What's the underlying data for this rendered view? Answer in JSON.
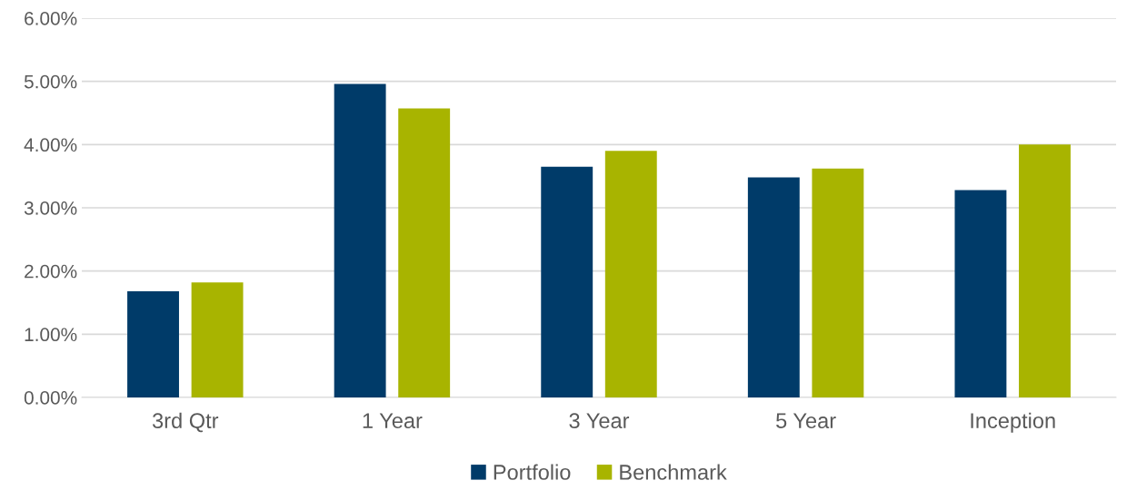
{
  "chart_data": {
    "type": "bar",
    "categories": [
      "3rd Qtr",
      "1 Year",
      "3 Year",
      "5 Year",
      "Inception"
    ],
    "series": [
      {
        "name": "Portfolio",
        "color": "#003b69",
        "values": [
          1.68,
          4.96,
          3.65,
          3.48,
          3.28
        ]
      },
      {
        "name": "Benchmark",
        "color": "#a8b400",
        "values": [
          1.82,
          4.57,
          3.9,
          3.62,
          4.0
        ]
      }
    ],
    "ylim": [
      0,
      6
    ],
    "yticks": [
      {
        "value": 0,
        "label": "0.00%"
      },
      {
        "value": 1,
        "label": "1.00%"
      },
      {
        "value": 2,
        "label": "2.00%"
      },
      {
        "value": 3,
        "label": "3.00%"
      },
      {
        "value": 4,
        "label": "4.00%"
      },
      {
        "value": 5,
        "label": "5.00%"
      },
      {
        "value": 6,
        "label": "6.00%"
      }
    ],
    "grid": "y",
    "legend": "bottom"
  }
}
